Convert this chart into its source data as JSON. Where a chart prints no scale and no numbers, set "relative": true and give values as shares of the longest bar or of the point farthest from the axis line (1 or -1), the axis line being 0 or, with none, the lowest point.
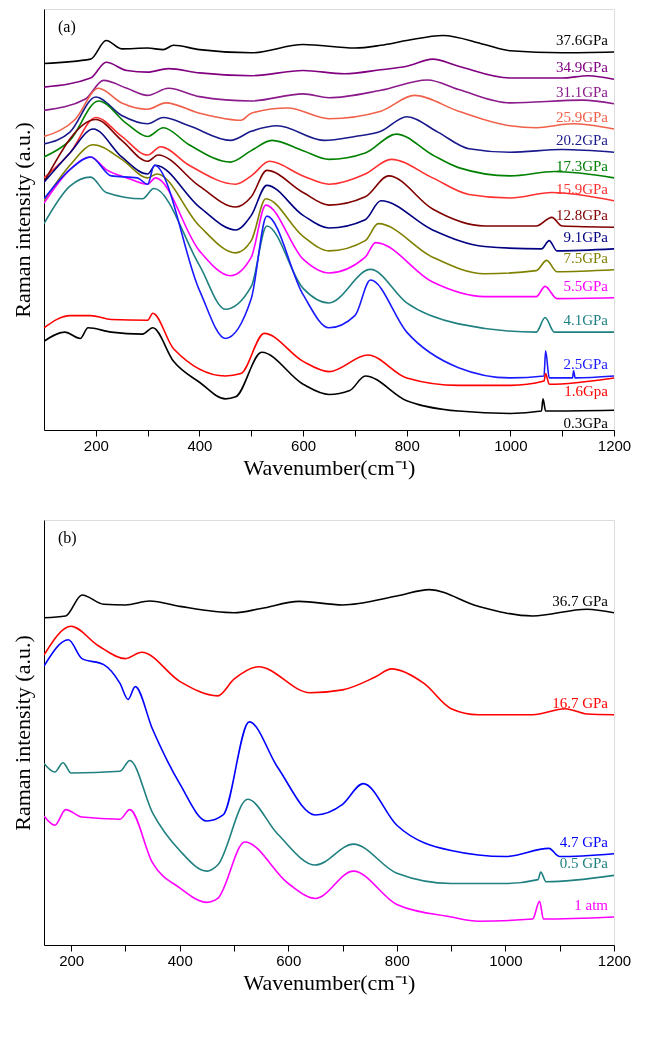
{
  "chart_data": [
    {
      "type": "line",
      "title": "(a)",
      "xlabel": "Wavenumber(cm⁻¹)",
      "ylabel": "Raman intensity (a.u.)",
      "relative": true,
      "xlim": [
        100,
        1200
      ],
      "xticks": [
        200,
        {
          "value": 300,
          "label": null
        },
        400,
        {
          "value": 500,
          "label": null
        },
        600,
        {
          "value": 700,
          "label": null
        },
        800,
        {
          "value": 900,
          "label": null
        },
        1000,
        {
          "value": 1100,
          "label": null
        },
        1200
      ],
      "series": [
        {
          "name": "37.6GPa",
          "color": "#000000",
          "x": [
            100,
            190,
            220,
            250,
            300,
            330,
            350,
            400,
            500,
            600,
            700,
            750,
            800,
            870,
            950,
            1000,
            1100,
            1200
          ],
          "values": [
            0.929,
            0.94,
            0.987,
            0.966,
            0.968,
            0.964,
            0.975,
            0.964,
            0.956,
            0.977,
            0.968,
            0.975,
            0.987,
            1.0,
            0.977,
            0.961,
            0.956,
            0.958
          ]
        },
        {
          "name": "34.9GPa",
          "color": "#800080",
          "x": [
            100,
            190,
            220,
            260,
            300,
            340,
            400,
            500,
            600,
            680,
            750,
            800,
            850,
            900,
            1000,
            1100,
            1150,
            1200
          ],
          "values": [
            0.869,
            0.892,
            0.932,
            0.911,
            0.907,
            0.916,
            0.905,
            0.898,
            0.911,
            0.903,
            0.913,
            0.922,
            0.94,
            0.922,
            0.892,
            0.892,
            0.898,
            0.889
          ]
        },
        {
          "name": "31.1GPa",
          "color": "#8b1a8b",
          "x": [
            100,
            180,
            215,
            260,
            300,
            340,
            400,
            500,
            600,
            650,
            750,
            840,
            900,
            1000,
            1140,
            1200
          ],
          "values": [
            0.81,
            0.839,
            0.886,
            0.866,
            0.848,
            0.866,
            0.845,
            0.834,
            0.852,
            0.842,
            0.861,
            0.887,
            0.863,
            0.829,
            0.836,
            0.827
          ]
        },
        {
          "name": "25.9GPa",
          "color": "#f0604a",
          "x": [
            100,
            160,
            205,
            250,
            300,
            335,
            400,
            480,
            500,
            570,
            650,
            750,
            815,
            900,
            1000,
            1050,
            1120,
            1200
          ],
          "values": [
            0.744,
            0.787,
            0.866,
            0.829,
            0.813,
            0.829,
            0.803,
            0.785,
            0.803,
            0.816,
            0.789,
            0.808,
            0.848,
            0.808,
            0.771,
            0.766,
            0.776,
            0.763
          ]
        },
        {
          "name": "20.2GPa",
          "color": "#1a1a8c",
          "x": [
            100,
            150,
            200,
            250,
            300,
            330,
            380,
            460,
            500,
            550,
            640,
            700,
            750,
            800,
            860,
            920,
            1000,
            1100,
            1200
          ],
          "values": [
            0.725,
            0.755,
            0.844,
            0.797,
            0.776,
            0.792,
            0.771,
            0.734,
            0.757,
            0.771,
            0.734,
            0.744,
            0.757,
            0.794,
            0.755,
            0.713,
            0.704,
            0.711,
            0.704
          ]
        },
        {
          "name": "17.3GPa",
          "color": "#008000",
          "x": [
            100,
            150,
            205,
            260,
            300,
            330,
            380,
            460,
            500,
            540,
            600,
            650,
            720,
            780,
            850,
            900,
            1000,
            1085,
            1200
          ],
          "values": [
            0.692,
            0.734,
            0.834,
            0.776,
            0.744,
            0.766,
            0.723,
            0.679,
            0.708,
            0.734,
            0.708,
            0.686,
            0.702,
            0.75,
            0.697,
            0.665,
            0.644,
            0.655,
            0.639
          ]
        },
        {
          "name": "15.9GPa",
          "color": "#ff3030",
          "x": [
            100,
            150,
            200,
            250,
            300,
            325,
            380,
            470,
            500,
            535,
            600,
            650,
            720,
            770,
            850,
            920,
            1000,
            1080,
            1200
          ],
          "values": [
            0.639,
            0.702,
            0.792,
            0.744,
            0.697,
            0.718,
            0.671,
            0.623,
            0.644,
            0.681,
            0.644,
            0.623,
            0.649,
            0.686,
            0.639,
            0.597,
            0.588,
            0.602,
            0.581
          ]
        },
        {
          "name": "12.8GPa",
          "color": "#800000",
          "x": [
            100,
            200,
            250,
            300,
            320,
            400,
            470,
            500,
            530,
            600,
            650,
            720,
            765,
            850,
            950,
            1050,
            1080,
            1100,
            1200
          ],
          "values": [
            0.628,
            0.787,
            0.734,
            0.681,
            0.697,
            0.618,
            0.565,
            0.591,
            0.658,
            0.602,
            0.57,
            0.591,
            0.644,
            0.56,
            0.517,
            0.517,
            0.539,
            0.517,
            0.514
          ]
        },
        {
          "name": "9.1GPa",
          "color": "#000080",
          "x": [
            100,
            150,
            195,
            250,
            300,
            315,
            400,
            470,
            500,
            530,
            600,
            650,
            720,
            750,
            850,
            950,
            1060,
            1075,
            1090,
            1200
          ],
          "values": [
            0.628,
            0.702,
            0.763,
            0.692,
            0.649,
            0.671,
            0.565,
            0.507,
            0.544,
            0.62,
            0.544,
            0.512,
            0.533,
            0.581,
            0.507,
            0.465,
            0.459,
            0.48,
            0.454,
            0.459
          ]
        },
        {
          "name": "7.5GPa",
          "color": "#808000",
          "x": [
            100,
            150,
            195,
            250,
            300,
            318,
            400,
            470,
            500,
            528,
            600,
            650,
            720,
            745,
            850,
            950,
            1050,
            1070,
            1090,
            1200
          ],
          "values": [
            0.581,
            0.671,
            0.723,
            0.686,
            0.639,
            0.649,
            0.517,
            0.449,
            0.48,
            0.586,
            0.491,
            0.454,
            0.48,
            0.523,
            0.438,
            0.396,
            0.404,
            0.43,
            0.401,
            0.406
          ]
        },
        {
          "name": "5.5GPa",
          "color": "#ff00ff",
          "x": [
            100,
            150,
            190,
            220,
            260,
            300,
            315,
            400,
            460,
            500,
            528,
            600,
            650,
            720,
            740,
            850,
            950,
            1050,
            1067,
            1090,
            1200
          ],
          "values": [
            0.575,
            0.66,
            0.692,
            0.66,
            0.639,
            0.623,
            0.639,
            0.454,
            0.391,
            0.438,
            0.57,
            0.433,
            0.398,
            0.438,
            0.475,
            0.375,
            0.338,
            0.338,
            0.364,
            0.333,
            0.335
          ]
        },
        {
          "name": "4.1GPa",
          "color": "#208080",
          "x": [
            100,
            150,
            190,
            220,
            290,
            312,
            400,
            450,
            500,
            530,
            600,
            650,
            730,
            800,
            900,
            1050,
            1067,
            1085,
            1200
          ],
          "values": [
            0.523,
            0.618,
            0.641,
            0.602,
            0.586,
            0.612,
            0.417,
            0.306,
            0.364,
            0.517,
            0.359,
            0.322,
            0.407,
            0.322,
            0.269,
            0.248,
            0.285,
            0.248,
            0.248
          ]
        },
        {
          "name": "2.5GPa",
          "color": "#1a1aff",
          "x": [
            100,
            150,
            190,
            230,
            280,
            300,
            313,
            400,
            450,
            500,
            530,
            600,
            650,
            700,
            730,
            800,
            900,
            1000,
            1065,
            1068,
            1075,
            1120,
            1122,
            1125,
            1200
          ],
          "values": [
            0.586,
            0.66,
            0.692,
            0.644,
            0.639,
            0.623,
            0.671,
            0.354,
            0.232,
            0.333,
            0.542,
            0.343,
            0.259,
            0.29,
            0.38,
            0.248,
            0.158,
            0.132,
            0.137,
            0.201,
            0.132,
            0.132,
            0.15,
            0.132,
            0.137
          ]
        },
        {
          "name": "1.6Gpa",
          "color": "#ff0000",
          "x": [
            100,
            150,
            190,
            230,
            300,
            310,
            350,
            450,
            480,
            525,
            600,
            650,
            725,
            800,
            900,
            1000,
            1065,
            1068,
            1075,
            1200
          ],
          "values": [
            0.259,
            0.29,
            0.29,
            0.28,
            0.278,
            0.296,
            0.206,
            0.137,
            0.143,
            0.245,
            0.174,
            0.148,
            0.19,
            0.132,
            0.113,
            0.113,
            0.124,
            0.143,
            0.116,
            0.132
          ]
        },
        {
          "name": "0.3GPa",
          "color": "#000000",
          "x": [
            100,
            140,
            170,
            185,
            230,
            290,
            310,
            350,
            400,
            450,
            470,
            520,
            600,
            650,
            690,
            720,
            800,
            900,
            1000,
            1060,
            1063,
            1068,
            1200
          ],
          "values": [
            0.225,
            0.248,
            0.232,
            0.259,
            0.248,
            0.243,
            0.259,
            0.174,
            0.121,
            0.079,
            0.084,
            0.197,
            0.116,
            0.09,
            0.1,
            0.137,
            0.074,
            0.048,
            0.042,
            0.048,
            0.079,
            0.048,
            0.05
          ]
        }
      ]
    },
    {
      "type": "line",
      "title": "(b)",
      "xlabel": "Wavenumber(cm⁻¹)",
      "ylabel": "Raman intensity (a.u.)",
      "relative": true,
      "xlim": [
        150,
        1200
      ],
      "xticks": [
        200,
        {
          "value": 300,
          "label": null
        },
        400,
        {
          "value": 500,
          "label": null
        },
        600,
        {
          "value": 700,
          "label": null
        },
        800,
        {
          "value": 900,
          "label": null
        },
        1000,
        {
          "value": 1100,
          "label": null
        },
        1200
      ],
      "series": [
        {
          "name": "36.7 GPa",
          "color": "#000000",
          "x": [
            150,
            190,
            220,
            260,
            300,
            345,
            400,
            500,
            550,
            620,
            700,
            800,
            860,
            950,
            1050,
            1150,
            1200
          ],
          "values": [
            0.921,
            0.926,
            0.985,
            0.959,
            0.957,
            0.968,
            0.953,
            0.935,
            0.947,
            0.967,
            0.957,
            0.982,
            1.0,
            0.953,
            0.926,
            0.945,
            0.935
          ]
        },
        {
          "name": "16.7 GPa",
          "color": "#ff0000",
          "x": [
            150,
            200,
            250,
            300,
            330,
            400,
            470,
            500,
            545,
            640,
            700,
            760,
            790,
            850,
            900,
            950,
            1050,
            1110,
            1150,
            1200
          ],
          "values": [
            0.816,
            0.897,
            0.842,
            0.806,
            0.824,
            0.742,
            0.701,
            0.748,
            0.783,
            0.71,
            0.718,
            0.754,
            0.777,
            0.736,
            0.665,
            0.648,
            0.648,
            0.665,
            0.65,
            0.648
          ]
        },
        {
          "name": "4.7 GPa",
          "color": "#0000ff",
          "x": [
            150,
            195,
            220,
            260,
            290,
            305,
            318,
            350,
            400,
            450,
            480,
            528,
            580,
            650,
            700,
            738,
            800,
            900,
            1000,
            1080,
            1100,
            1200
          ],
          "values": [
            0.785,
            0.859,
            0.806,
            0.789,
            0.736,
            0.691,
            0.727,
            0.607,
            0.454,
            0.349,
            0.366,
            0.628,
            0.501,
            0.366,
            0.396,
            0.454,
            0.337,
            0.266,
            0.249,
            0.272,
            0.249,
            0.257
          ]
        },
        {
          "name": "0.5 GPa",
          "color": "#208080",
          "x": [
            150,
            170,
            185,
            200,
            290,
            308,
            350,
            400,
            450,
            470,
            525,
            580,
            650,
            720,
            800,
            900,
            1000,
            1060,
            1065,
            1075,
            1200
          ],
          "values": [
            0.511,
            0.487,
            0.513,
            0.484,
            0.489,
            0.519,
            0.372,
            0.266,
            0.208,
            0.225,
            0.41,
            0.313,
            0.225,
            0.284,
            0.202,
            0.173,
            0.173,
            0.184,
            0.205,
            0.178,
            0.196
          ]
        },
        {
          "name": "1 atm",
          "color": "#ff00ff",
          "x": [
            150,
            170,
            190,
            220,
            290,
            308,
            350,
            400,
            450,
            470,
            520,
            600,
            650,
            720,
            800,
            900,
            950,
            1050,
            1063,
            1070,
            1200
          ],
          "values": [
            0.363,
            0.337,
            0.381,
            0.36,
            0.354,
            0.381,
            0.231,
            0.161,
            0.12,
            0.131,
            0.29,
            0.173,
            0.131,
            0.208,
            0.114,
            0.079,
            0.067,
            0.073,
            0.123,
            0.073,
            0.079
          ]
        }
      ]
    }
  ]
}
